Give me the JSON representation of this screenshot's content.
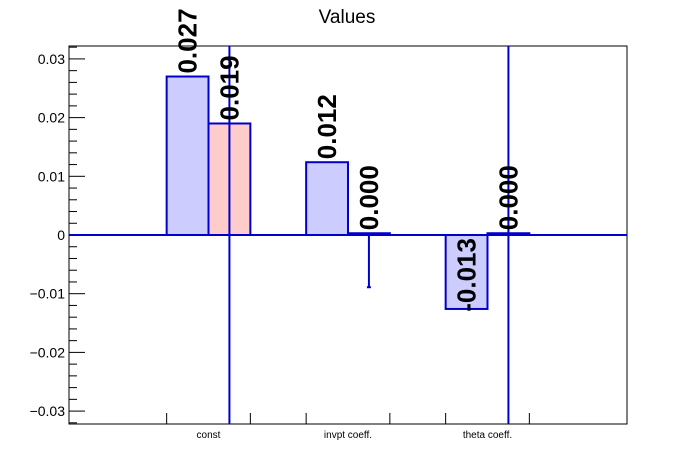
{
  "chart_data": {
    "type": "bar",
    "title": "Values",
    "categories": [
      "const",
      "invpt coeff.",
      "theta coeff."
    ],
    "ylim": [
      -0.0322,
      0.0322
    ],
    "yticks": [
      {
        "value": 0.03,
        "label": "0.03"
      },
      {
        "value": 0.02,
        "label": "0.02"
      },
      {
        "value": 0.01,
        "label": "0.01"
      },
      {
        "value": 0,
        "label": "0"
      },
      {
        "value": -0.01,
        "label": "−0.01"
      },
      {
        "value": -0.02,
        "label": "−0.02"
      },
      {
        "value": -0.03,
        "label": "−0.03"
      }
    ],
    "series": [
      {
        "color": "#ccccff",
        "values": [
          0.027,
          0.0124,
          -0.0126
        ],
        "labels": [
          "0.027",
          "0.012",
          "-0.013"
        ]
      },
      {
        "color": "#ffcccc",
        "values": [
          0.019,
          0.0003,
          0.0003
        ],
        "labels": [
          "0.019",
          "0.000",
          "0.000"
        ]
      }
    ],
    "error_bars": [
      {
        "category": 0,
        "series": 1,
        "low": -0.0322,
        "high": 0.0322
      },
      {
        "category": 1,
        "series": 1,
        "low": -0.0089,
        "high": 0.0003
      },
      {
        "category": 2,
        "series": 1,
        "low": -0.0322,
        "high": 0.0322
      }
    ],
    "grid": false,
    "legend": "none",
    "colors": {
      "frame": "#000000",
      "outline": "#0000cc"
    }
  }
}
